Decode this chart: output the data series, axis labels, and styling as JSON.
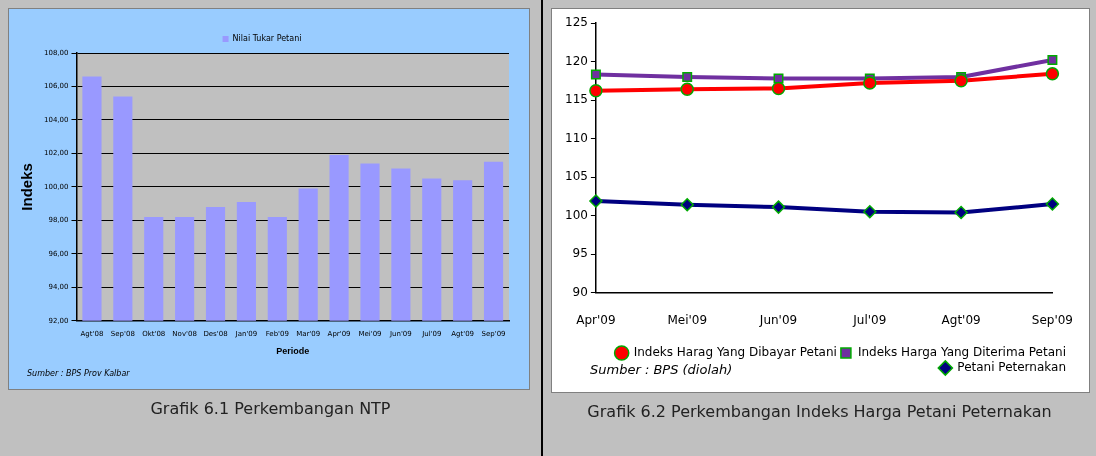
{
  "chart_data": [
    {
      "type": "bar",
      "title": "Grafik 6.1 Perkembangan NTP",
      "xlabel": "Periode",
      "ylabel": "Indeks",
      "categories": [
        "Agt'08",
        "Sep'08",
        "Okt'08",
        "Nov'08",
        "Des'08",
        "Jan'09",
        "Feb'09",
        "Mar'09",
        "Apr'09",
        "Mei'09",
        "Jun'09",
        "Jul'09",
        "Agt'09",
        "Sep'09"
      ],
      "series": [
        {
          "name": "Nilai Tukar Petani",
          "color": "#9999ff",
          "values": [
            106.6,
            105.4,
            98.2,
            98.2,
            98.8,
            99.1,
            98.2,
            99.9,
            101.9,
            101.4,
            101.1,
            100.5,
            100.4,
            101.5
          ]
        }
      ],
      "ylim": [
        92,
        108
      ],
      "yticks": [
        {
          "value": 92,
          "label": "92,00"
        },
        {
          "value": 94,
          "label": "94,00"
        },
        {
          "value": 96,
          "label": "96,00"
        },
        {
          "value": 98,
          "label": "98,00"
        },
        {
          "value": 100,
          "label": "100,00"
        },
        {
          "value": 102,
          "label": "102,00"
        },
        {
          "value": 104,
          "label": "104,00"
        },
        {
          "value": 106,
          "label": "106,00"
        },
        {
          "value": 108,
          "label": "108,00"
        }
      ],
      "grid": "y",
      "legend": "top",
      "annotations": [
        "Sumber : BPS Prov Kalbar"
      ]
    },
    {
      "type": "line",
      "title": "Grafik 6.2 Perkembangan Indeks Harga Petani Peternakan",
      "categories": [
        "Apr'09",
        "Mei'09",
        "Jun'09",
        "Jul'09",
        "Agt'09",
        "Sep'09"
      ],
      "series": [
        {
          "name": "Petani Peternakan",
          "color": "#000080",
          "marker": "diamond",
          "values": [
            101.9,
            101.4,
            101.1,
            100.5,
            100.4,
            101.5
          ]
        },
        {
          "name": "Indeks Harga Yang Diterima Petani",
          "color": "#7030a0",
          "marker": "square",
          "values": [
            118.3,
            118.0,
            117.8,
            117.8,
            118.0,
            120.2
          ]
        },
        {
          "name": "Indeks Harag Yang Dibayar Petani",
          "color": "#ff0000",
          "marker": "circle",
          "values": [
            116.2,
            116.4,
            116.5,
            117.2,
            117.5,
            118.4
          ]
        }
      ],
      "ylim": [
        90,
        125
      ],
      "yticks": [
        90,
        95,
        100,
        105,
        110,
        115,
        120,
        125
      ],
      "grid": false,
      "legend": "bottom right",
      "annotations": [
        "Sumber : BPS (diolah)"
      ]
    }
  ]
}
